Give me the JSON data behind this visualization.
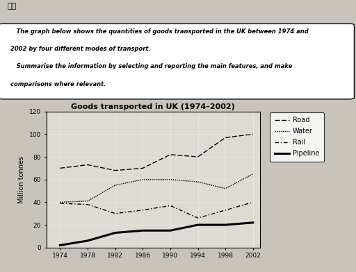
{
  "title": "Goods transported in UK (1974–2002)",
  "ylabel": "Million tonnes",
  "years": [
    1974,
    1978,
    1982,
    1986,
    1990,
    1994,
    1998,
    2002
  ],
  "road": [
    70,
    73,
    68,
    70,
    82,
    80,
    97,
    100
  ],
  "water": [
    40,
    41,
    55,
    60,
    60,
    58,
    52,
    65
  ],
  "rail": [
    39,
    38,
    30,
    33,
    37,
    26,
    33,
    40
  ],
  "pipeline": [
    2,
    6,
    13,
    15,
    15,
    20,
    20,
    22
  ],
  "ylim": [
    0,
    120
  ],
  "yticks": [
    0,
    20,
    40,
    60,
    80,
    100,
    120
  ],
  "xticks": [
    1974,
    1978,
    1982,
    1986,
    1990,
    1994,
    1998,
    2002
  ],
  "fig_bg": "#c8c4bc",
  "chart_bg": "#dedad4",
  "header_label": "题目",
  "header_text1": "   The graph below shows the quantities of goods transported in the UK between 1974 and",
  "header_text2": "2002 by four different modes of transport.",
  "header_text3": "   Summarise the information by selecting and reporting the main features, and make",
  "header_text4": "comparisons where relevant.",
  "legend_labels": [
    "Road",
    "Water",
    "Rail",
    "Pipeline"
  ]
}
